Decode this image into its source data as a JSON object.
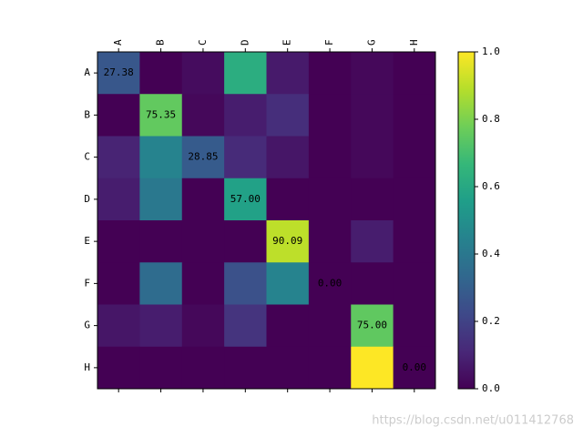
{
  "chart_data": {
    "type": "heatmap",
    "x_categories": [
      "A",
      "B",
      "C",
      "D",
      "E",
      "F",
      "G",
      "H"
    ],
    "y_categories": [
      "A",
      "B",
      "C",
      "D",
      "E",
      "F",
      "G",
      "H"
    ],
    "values": [
      [
        0.2738,
        0,
        0.03,
        0.62,
        0.07,
        0,
        0.02,
        0
      ],
      [
        0,
        0.7535,
        0.02,
        0.08,
        0.13,
        0,
        0.02,
        0
      ],
      [
        0.1,
        0.45,
        0.2885,
        0.12,
        0.06,
        0,
        0.02,
        0
      ],
      [
        0.08,
        0.4,
        0,
        0.57,
        0,
        0,
        0,
        0
      ],
      [
        0,
        0,
        0,
        0,
        0.9009,
        0,
        0.08,
        0
      ],
      [
        0,
        0.35,
        0,
        0.25,
        0.45,
        0,
        0,
        0
      ],
      [
        0.06,
        0.08,
        0.02,
        0.15,
        0,
        0,
        0.75,
        0
      ],
      [
        0,
        0,
        0,
        0,
        0,
        0,
        1.0,
        0
      ]
    ],
    "diagonal_labels": [
      "27.38",
      "75.35",
      "28.85",
      "57.00",
      "90.09",
      "0.00",
      "75.00",
      "0.00"
    ],
    "colormap": "viridis",
    "clim": [
      0,
      1
    ],
    "cticks": [
      {
        "value": 0,
        "label": "0.0"
      },
      0.2,
      0.4,
      0.6,
      0.8,
      {
        "value": 1,
        "label": "1.0"
      }
    ]
  },
  "watermark": "https://blog.csdn.net/u011412768"
}
